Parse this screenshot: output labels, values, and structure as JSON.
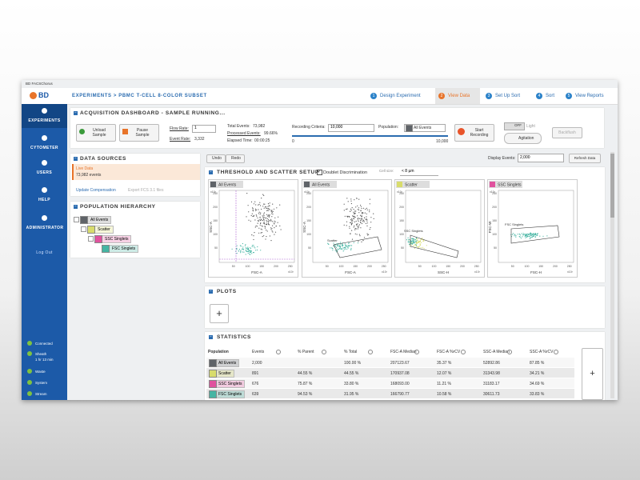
{
  "window": {
    "title": "BD FACSChorus"
  },
  "header": {
    "logo": "BD",
    "breadcrumb": "EXPERIMENTS > PBMC T-CELL 8-COLOR SUBSET",
    "steps": [
      {
        "number": 1,
        "label": "Design Experiment"
      },
      {
        "number": 2,
        "label": "View Data",
        "active": true
      },
      {
        "number": 3,
        "label": "Set Up Sort"
      },
      {
        "number": 4,
        "label": "Sort"
      },
      {
        "number": 5,
        "label": "View Reports"
      }
    ]
  },
  "sidebar": {
    "items": [
      "EXPERIMENTS",
      "CYTOMETER",
      "USERS",
      "HELP",
      "ADMINISTRATOR"
    ],
    "logout": "Log Out",
    "status": [
      {
        "label": "Connected"
      },
      {
        "label": "Sheath",
        "detail": "1 hr 13 min"
      },
      {
        "label": "Waste"
      },
      {
        "label": "System"
      },
      {
        "label": "Stream"
      }
    ]
  },
  "dashboard": {
    "title": "ACQUISITION DASHBOARD - SAMPLE RUNNING...",
    "unload": "Unload Sample",
    "pause": "Pause Sample",
    "flow_rate_label": "Flow Rate:",
    "flow_rate": "1",
    "event_rate_label": "Event Rate:",
    "event_rate": "3,332",
    "total_label": "Total Events:",
    "total": "73,982",
    "processed_label": "Processed Events:",
    "processed": "99.66%",
    "elapsed_label": "Elapsed Time:",
    "elapsed": "00:00:25",
    "criteria_label": "Recording Criteria:",
    "criteria": "10,000",
    "slider_min": "0",
    "slider_max": "10,000",
    "population_label": "Population:",
    "population": "All Events",
    "start": "Start Recording",
    "toggle": "OFF",
    "light": "Light",
    "agitation": "Agitation",
    "backflush": "Backflush"
  },
  "data_sources": {
    "title": "DATA SOURCES",
    "live": "Live Data",
    "events": "73,982 events",
    "update": "Update Compensation",
    "export": "Export FCS 3.1 files"
  },
  "hierarchy": {
    "title": "POPULATION HIERARCHY",
    "nodes": [
      {
        "label": "All Events",
        "color": "#5f6368"
      },
      {
        "label": "Scatter",
        "color": "#d8dc6c"
      },
      {
        "label": "SSC Singlets",
        "color": "#e0529e"
      },
      {
        "label": "FSC Singlets",
        "color": "#45b5a3"
      }
    ]
  },
  "toolbar": {
    "undo": "Undo",
    "redo": "Redo",
    "display_label": "Display Events:",
    "display": "2,000",
    "refresh": "Refresh Data"
  },
  "threshold": {
    "title": "THRESHOLD AND SCATTER SETUP",
    "doublet": "Doublet Discrimination",
    "cell_size_label": "Cell size:",
    "cell_size": "< 8 µm",
    "ticks": [
      "50",
      "100",
      "150",
      "200",
      "250"
    ],
    "exponent": "x10³",
    "plots": [
      {
        "title": "All Events",
        "color": "#5f6368",
        "x_label": "FSC-A",
        "y_label": "SSC-A"
      },
      {
        "title": "All Events",
        "color": "#5f6368",
        "x_label": "FSC-A",
        "y_label": "SSC-A",
        "gate": "Scatter"
      },
      {
        "title": "Scatter",
        "color": "#d8dc6c",
        "x_label": "SSC-H",
        "gate": "SSC Singlets"
      },
      {
        "title": "SSC Singlets",
        "color": "#e0529e",
        "x_label": "FSC-H",
        "y_label": "FSC-W",
        "gate": "FSC Singlets"
      }
    ]
  },
  "plots_panel": {
    "title": "PLOTS",
    "add": "+"
  },
  "statistics": {
    "title": "STATISTICS",
    "add": "+",
    "columns": [
      "Population",
      "Events",
      "% Parent",
      "% Total",
      "FSC-A Median",
      "FSC-A %rCV",
      "SSC-A Median",
      "SSC-A %rCV"
    ],
    "rows": [
      {
        "name": "All Events",
        "color": "#5f6368",
        "cells": [
          "2,000",
          null,
          "100.00 %",
          "207123.67",
          "35.37 %",
          "52892.86",
          "87.85 %"
        ]
      },
      {
        "name": "Scatter",
        "color": "#d8dc6c",
        "cells": [
          "891",
          "44.55 %",
          "44.55 %",
          "170937.08",
          "12.07 %",
          "31343.98",
          "34.21 %"
        ]
      },
      {
        "name": "SSC Singlets",
        "color": "#e0529e",
        "cells": [
          "676",
          "75.87 %",
          "33.80 %",
          "168093.00",
          "11.21 %",
          "31183.17",
          "34.69 %"
        ]
      },
      {
        "name": "FSC Singlets",
        "color": "#45b5a3",
        "cells": [
          "639",
          "94.53 %",
          "31.95 %",
          "166790.77",
          "10.58 %",
          "30611.73",
          "33.83 %"
        ]
      }
    ]
  }
}
